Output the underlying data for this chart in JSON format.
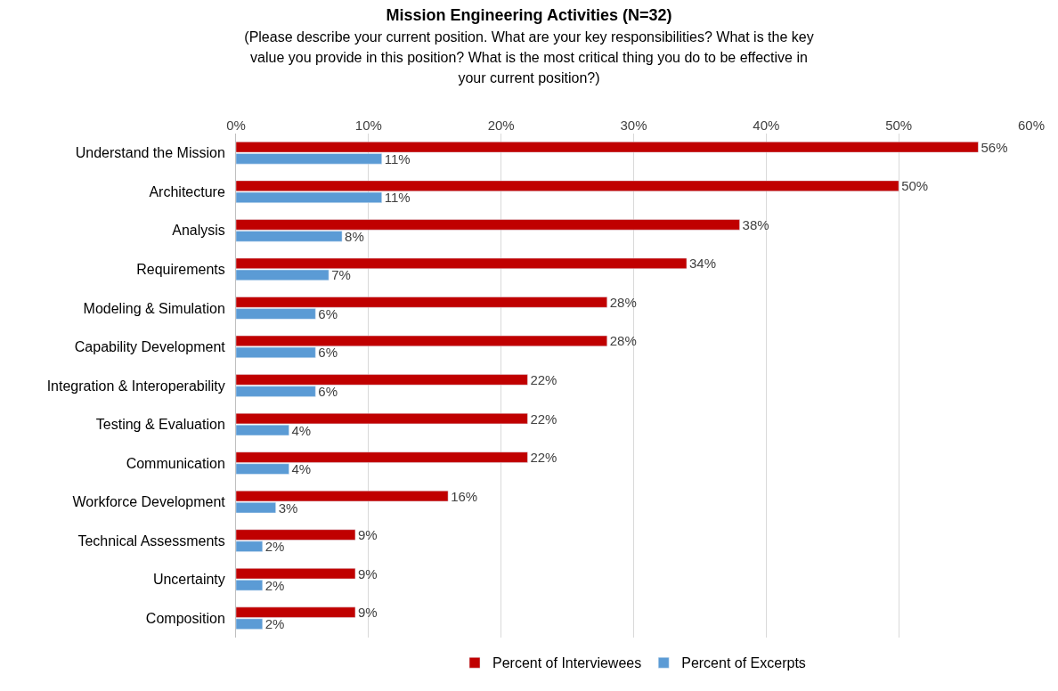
{
  "chart_data": {
    "type": "bar",
    "orientation": "horizontal",
    "title": "Mission Engineering Activities (N=32)",
    "subtitle": "(Please describe your current position. What are your key responsibilities? What is the key value you provide in this position? What is the most critical thing you do to be effective in your current position?)",
    "categories": [
      "Understand the Mission",
      "Architecture",
      "Analysis",
      "Requirements",
      "Modeling & Simulation",
      "Capability Development",
      "Integration & Interoperability",
      "Testing & Evaluation",
      "Communication",
      "Workforce Development",
      "Technical Assessments",
      "Uncertainty",
      "Composition"
    ],
    "series": [
      {
        "name": "Percent of Interviewees",
        "color": "#c00000",
        "values": [
          56,
          50,
          38,
          34,
          28,
          28,
          22,
          22,
          22,
          16,
          9,
          9,
          9
        ],
        "value_labels": [
          "56%",
          "50%",
          "38%",
          "34%",
          "28%",
          "28%",
          "22%",
          "22%",
          "22%",
          "16%",
          "9%",
          "9%",
          "9%"
        ]
      },
      {
        "name": "Percent of Excerpts",
        "color": "#5b9bd5",
        "values": [
          11,
          11,
          8,
          7,
          6,
          6,
          6,
          4,
          4,
          3,
          2,
          2,
          2
        ],
        "value_labels": [
          "11%",
          "11%",
          "8%",
          "7%",
          "6%",
          "6%",
          "6%",
          "4%",
          "4%",
          "3%",
          "2%",
          "2%",
          "2%"
        ]
      }
    ],
    "xlim": [
      0,
      60
    ],
    "xticks": [
      {
        "value": 0,
        "label": "0%"
      },
      {
        "value": 10,
        "label": "10%"
      },
      {
        "value": 20,
        "label": "20%"
      },
      {
        "value": 30,
        "label": "30%"
      },
      {
        "value": 40,
        "label": "40%"
      },
      {
        "value": 50,
        "label": "50%"
      },
      {
        "value": 60,
        "label": "60%"
      }
    ],
    "grid": "x",
    "legend": "bottom"
  }
}
